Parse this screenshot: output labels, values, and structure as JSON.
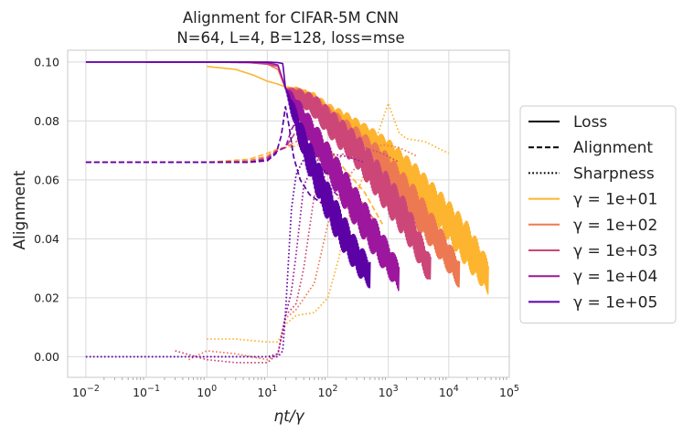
{
  "chart_data": {
    "type": "line",
    "title": "Alignment for CIFAR-5M CNN",
    "subtitle": "N=64, L=4, B=128, loss=mse",
    "xlabel": "ηt/γ",
    "ylabel": "Alignment",
    "xscale": "log",
    "xlim": [
      0.005,
      100000
    ],
    "ylim": [
      -0.007,
      0.104
    ],
    "x_ticks": [
      {
        "value": 0.01,
        "base": "10",
        "exp": "−2"
      },
      {
        "value": 0.1,
        "base": "10",
        "exp": "−1"
      },
      {
        "value": 1,
        "base": "10",
        "exp": "0"
      },
      {
        "value": 10,
        "base": "10",
        "exp": "1"
      },
      {
        "value": 100,
        "base": "10",
        "exp": "2"
      },
      {
        "value": 1000,
        "base": "10",
        "exp": "3"
      },
      {
        "value": 10000,
        "base": "10",
        "exp": "4"
      },
      {
        "value": 100000,
        "base": "10",
        "exp": "5"
      }
    ],
    "y_ticks": [
      {
        "value": 0.0,
        "label": "0.00"
      },
      {
        "value": 0.02,
        "label": "0.02"
      },
      {
        "value": 0.04,
        "label": "0.04"
      },
      {
        "value": 0.06,
        "label": "0.06"
      },
      {
        "value": 0.08,
        "label": "0.08"
      },
      {
        "value": 0.1,
        "label": "0.10"
      }
    ],
    "grid": true,
    "legend_position": "center-right",
    "legend": [
      {
        "label": "Loss",
        "style": "solid",
        "color": "#000000"
      },
      {
        "label": "Alignment",
        "style": "dashed",
        "color": "#000000"
      },
      {
        "label": "Sharpness",
        "style": "dotted",
        "color": "#000000"
      },
      {
        "label": "γ = 1e+01",
        "style": "solid",
        "color": "#fdb42f"
      },
      {
        "label": "γ = 1e+02",
        "style": "solid",
        "color": "#ed7953"
      },
      {
        "label": "γ = 1e+03",
        "style": "solid",
        "color": "#cc4778"
      },
      {
        "label": "γ = 1e+04",
        "style": "solid",
        "color": "#9c179e"
      },
      {
        "label": "γ = 1e+05",
        "style": "solid",
        "color": "#5c01a6"
      }
    ],
    "series": [
      {
        "name": "γ = 1e+01",
        "color": "#fdb42f",
        "loss": {
          "x": [
            1,
            3,
            6,
            10,
            15,
            20,
            30,
            60,
            100,
            200,
            500,
            1000,
            3000,
            10000,
            20000,
            45000
          ],
          "y": [
            0.0985,
            0.0975,
            0.0955,
            0.0935,
            0.0925,
            0.0915,
            0.0895,
            0.0865,
            0.083,
            0.079,
            0.074,
            0.069,
            0.059,
            0.046,
            0.038,
            0.027
          ],
          "noise": [
            0,
            0,
            0,
            0,
            0,
            0,
            0.002,
            0.003,
            0.003,
            0.004,
            0.004,
            0.005,
            0.006,
            0.007,
            0.008,
            0.006
          ]
        },
        "alignment": {
          "x": [
            0.01,
            1,
            5,
            10,
            15,
            20,
            30,
            50,
            80,
            120,
            200,
            400,
            800
          ],
          "y": [
            0.066,
            0.066,
            0.067,
            0.069,
            0.0705,
            0.071,
            0.0715,
            0.074,
            0.072,
            0.069,
            0.063,
            0.056,
            0.045
          ]
        },
        "sharpness": {
          "x": [
            1,
            3,
            10,
            15,
            20,
            30,
            60,
            100,
            150,
            200,
            300,
            500,
            1000,
            1500,
            2000,
            4000,
            10000
          ],
          "y": [
            0.006,
            0.006,
            0.005,
            0.005,
            0.011,
            0.014,
            0.015,
            0.02,
            0.033,
            0.045,
            0.055,
            0.068,
            0.086,
            0.076,
            0.074,
            0.073,
            0.069
          ]
        }
      },
      {
        "name": "γ = 1e+02",
        "color": "#ed7953",
        "loss": {
          "x": [
            0.1,
            1,
            5,
            10,
            15,
            20,
            30,
            60,
            100,
            300,
            1000,
            3000,
            6000,
            15000
          ],
          "y": [
            0.1,
            0.1,
            0.0998,
            0.0993,
            0.0975,
            0.091,
            0.0895,
            0.086,
            0.081,
            0.073,
            0.063,
            0.05,
            0.041,
            0.028
          ],
          "noise": [
            0,
            0,
            0,
            0,
            0,
            0,
            0.002,
            0.003,
            0.004,
            0.005,
            0.006,
            0.007,
            0.006,
            0.005
          ]
        },
        "alignment": {
          "x": [
            0.01,
            1,
            5,
            10,
            15,
            20,
            30,
            50,
            80,
            150,
            300,
            600
          ],
          "y": [
            0.066,
            0.066,
            0.0665,
            0.068,
            0.0705,
            0.071,
            0.073,
            0.075,
            0.071,
            0.063,
            0.055,
            0.046
          ]
        },
        "sharpness": {
          "x": [
            0.5,
            1,
            3,
            10,
            15,
            20,
            30,
            60,
            100,
            200,
            400,
            800,
            1500,
            3000
          ],
          "y": [
            -0.001,
            0.002,
            0.001,
            -0.001,
            0.001,
            0.013,
            0.016,
            0.025,
            0.045,
            0.06,
            0.068,
            0.072,
            0.071,
            0.068
          ]
        }
      },
      {
        "name": "γ = 1e+03",
        "color": "#cc4778",
        "loss": {
          "x": [
            0.1,
            1,
            5,
            10,
            15,
            20,
            30,
            60,
            100,
            300,
            1000,
            2000,
            5000
          ],
          "y": [
            0.1,
            0.1,
            0.0998,
            0.0993,
            0.0985,
            0.091,
            0.089,
            0.085,
            0.08,
            0.07,
            0.055,
            0.046,
            0.029
          ],
          "noise": [
            0,
            0,
            0,
            0,
            0,
            0,
            0.002,
            0.004,
            0.005,
            0.006,
            0.007,
            0.007,
            0.005
          ]
        },
        "alignment": {
          "x": [
            0.01,
            1,
            5,
            10,
            15,
            20,
            30,
            40,
            60,
            100,
            200,
            400
          ],
          "y": [
            0.066,
            0.066,
            0.066,
            0.0675,
            0.07,
            0.071,
            0.0765,
            0.078,
            0.07,
            0.062,
            0.053,
            0.046
          ]
        },
        "sharpness": {
          "x": [
            0.3,
            1,
            3,
            10,
            15,
            20,
            30,
            40,
            60,
            100,
            200,
            400,
            800,
            1500
          ],
          "y": [
            0.002,
            -0.001,
            -0.002,
            -0.002,
            0.001,
            0.014,
            0.018,
            0.03,
            0.055,
            0.063,
            0.07,
            0.071,
            0.069,
            0.066
          ]
        }
      },
      {
        "name": "γ = 1e+04",
        "color": "#9c179e",
        "loss": {
          "x": [
            0.01,
            1,
            5,
            10,
            15,
            20,
            25,
            40,
            80,
            200,
            500,
            1000,
            1500
          ],
          "y": [
            0.1,
            0.1,
            0.1,
            0.0998,
            0.099,
            0.091,
            0.088,
            0.08,
            0.07,
            0.056,
            0.043,
            0.033,
            0.027
          ],
          "noise": [
            0,
            0,
            0,
            0,
            0,
            0,
            0.002,
            0.005,
            0.006,
            0.007,
            0.007,
            0.006,
            0.005
          ]
        },
        "alignment": {
          "x": [
            0.01,
            1,
            5,
            10,
            15,
            20,
            25,
            30,
            40,
            60,
            100,
            200
          ],
          "y": [
            0.066,
            0.066,
            0.066,
            0.067,
            0.07,
            0.071,
            0.077,
            0.08,
            0.076,
            0.066,
            0.058,
            0.052
          ]
        },
        "sharpness": {
          "x": [
            0.01,
            1,
            5,
            10,
            15,
            20,
            25,
            30,
            40,
            60,
            100,
            200,
            400
          ],
          "y": [
            0.0,
            0.0,
            0.0,
            0.0,
            0.001,
            0.014,
            0.022,
            0.035,
            0.058,
            0.066,
            0.069,
            0.068,
            0.066
          ]
        }
      },
      {
        "name": "γ = 1e+05",
        "color": "#5c01a6",
        "loss": {
          "x": [
            0.01,
            1,
            5,
            10,
            15,
            18,
            20,
            25,
            40,
            80,
            150,
            300,
            500
          ],
          "y": [
            0.1,
            0.1,
            0.1,
            0.1,
            0.0998,
            0.0995,
            0.091,
            0.085,
            0.072,
            0.057,
            0.045,
            0.034,
            0.028
          ],
          "noise": [
            0,
            0,
            0,
            0,
            0,
            0,
            0,
            0.003,
            0.006,
            0.007,
            0.007,
            0.006,
            0.005
          ]
        },
        "alignment": {
          "x": [
            0.01,
            1,
            5,
            10,
            14,
            17,
            20,
            23,
            27,
            35,
            50,
            80
          ],
          "y": [
            0.066,
            0.066,
            0.066,
            0.0665,
            0.069,
            0.075,
            0.085,
            0.078,
            0.068,
            0.06,
            0.055,
            0.052
          ]
        },
        "sharpness": {
          "x": [
            0.01,
            1,
            5,
            10,
            15,
            18,
            20,
            22,
            25,
            30,
            40,
            60,
            100
          ],
          "y": [
            0.0,
            0.0,
            0.0,
            0.0,
            0.0,
            0.002,
            0.015,
            0.03,
            0.05,
            0.062,
            0.067,
            0.066,
            0.062
          ]
        }
      }
    ]
  }
}
